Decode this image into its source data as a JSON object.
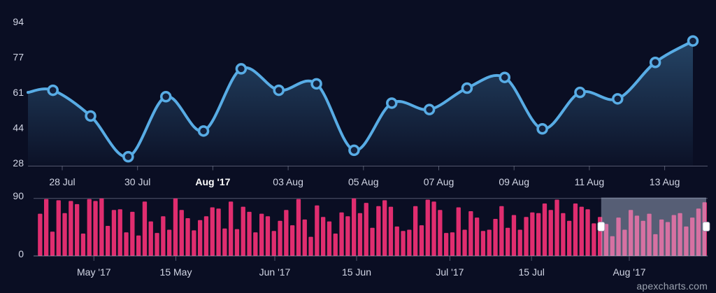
{
  "page": {
    "watermark": "apexcharts.com"
  },
  "colors": {
    "background": "#0a0e23",
    "line": "#58ACE5",
    "marker_fill": "#13203C",
    "bar": "#E02D6F",
    "selection_overlay": "rgba(200,215,240,0.40)",
    "handle_fill": "#FFFFFF",
    "axis_label": "#D2D6E5",
    "axis_label_bold": "#FFFFFF",
    "grid_line": "rgba(170,178,200,0.45)",
    "watermark_color": "#9CA3B0"
  },
  "chart_data": [
    {
      "type": "area",
      "role": "main-line-chart",
      "title": "",
      "xlabel": "",
      "ylabel": "",
      "grid": false,
      "legend": "none",
      "ylim": [
        28,
        94
      ],
      "y_tick_labels": [
        "94",
        "77",
        "61",
        "44",
        "28"
      ],
      "x_tick_labels": [
        "28 Jul",
        "30 Jul",
        "Aug '17",
        "03 Aug",
        "05 Aug",
        "07 Aug",
        "09 Aug",
        "11 Aug",
        "13 Aug"
      ],
      "bold_x_label": "Aug '17",
      "values": [
        61,
        62,
        50,
        31,
        59,
        43,
        72,
        62,
        65,
        34,
        56,
        53,
        63,
        68,
        44,
        61,
        58,
        75,
        85
      ]
    },
    {
      "type": "bar",
      "role": "brush-navigator-chart",
      "title": "",
      "xlabel": "",
      "ylabel": "",
      "grid": true,
      "legend": "none",
      "ylim": [
        0,
        90
      ],
      "y_tick_labels": [
        "90",
        "0"
      ],
      "x_tick_labels": [
        "May '17",
        "15 May",
        "Jun '17",
        "15 Jun",
        "Jul '17",
        "15 Jul",
        "Aug '17"
      ],
      "values": [
        66,
        89,
        38,
        87,
        67,
        86,
        81,
        35,
        89,
        86,
        90,
        47,
        72,
        73,
        37,
        69,
        32,
        85,
        54,
        36,
        62,
        41,
        90,
        72,
        59,
        40,
        56,
        62,
        76,
        74,
        43,
        85,
        42,
        77,
        69,
        37,
        66,
        62,
        39,
        55,
        72,
        48,
        89,
        57,
        30,
        79,
        61,
        54,
        35,
        68,
        62,
        90,
        67,
        83,
        44,
        78,
        87,
        77,
        46,
        39,
        41,
        78,
        48,
        88,
        85,
        72,
        36,
        37,
        76,
        41,
        70,
        60,
        39,
        41,
        58,
        78,
        44,
        64,
        41,
        61,
        68,
        67,
        82,
        72,
        88,
        67,
        55,
        82,
        77,
        73,
        51,
        61,
        50,
        31,
        60,
        41,
        72,
        63,
        55,
        66,
        34,
        57,
        53,
        64,
        67,
        46,
        60,
        74,
        84
      ],
      "selection": {
        "start_index": 92,
        "end_index": 108
      }
    }
  ]
}
